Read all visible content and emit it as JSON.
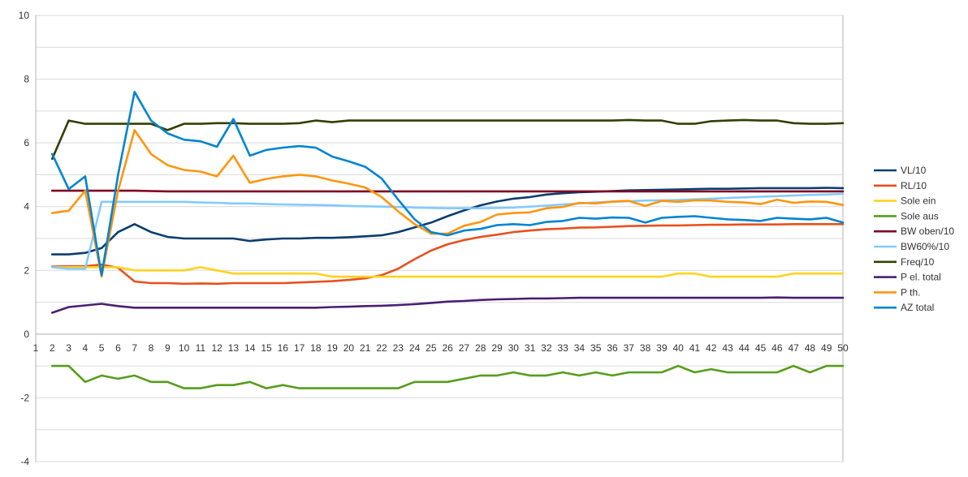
{
  "chart_data": {
    "type": "line",
    "title": "",
    "xlabel": "",
    "ylabel": "",
    "x": [
      1,
      2,
      3,
      4,
      5,
      6,
      7,
      8,
      9,
      10,
      11,
      12,
      13,
      14,
      15,
      16,
      17,
      18,
      19,
      20,
      21,
      22,
      23,
      24,
      25,
      26,
      27,
      28,
      29,
      30,
      31,
      32,
      33,
      34,
      35,
      36,
      37,
      38,
      39,
      40,
      41,
      42,
      43,
      44,
      45,
      46,
      47,
      48,
      49,
      50
    ],
    "xlim": [
      1,
      50
    ],
    "ylim": [
      -4,
      10
    ],
    "yticks": [
      -4,
      -2,
      0,
      2,
      4,
      6,
      8,
      10
    ],
    "ytick_labels": [
      "-4",
      "-2",
      "0",
      "2",
      "4",
      "6",
      "8",
      "10"
    ],
    "xtick_labels": [
      "1",
      "2",
      "3",
      "4",
      "5",
      "6",
      "7",
      "8",
      "9",
      "10",
      "11",
      "12",
      "13",
      "14",
      "15",
      "16",
      "17",
      "18",
      "19",
      "20",
      "21",
      "22",
      "23",
      "24",
      "25",
      "26",
      "27",
      "28",
      "29",
      "30",
      "31",
      "32",
      "33",
      "34",
      "35",
      "36",
      "37",
      "38",
      "39",
      "40",
      "41",
      "42",
      "43",
      "44",
      "45",
      "46",
      "47",
      "48",
      "49",
      "50"
    ],
    "grid": "horizontal",
    "legend_position": "right",
    "series": [
      {
        "name": "VL/10",
        "color": "#0b3d6e",
        "values": [
          null,
          2.5,
          2.5,
          2.55,
          2.7,
          3.2,
          3.45,
          3.2,
          3.05,
          3.0,
          3.0,
          3.0,
          3.0,
          2.92,
          2.97,
          3.0,
          3.0,
          3.02,
          3.02,
          3.04,
          3.07,
          3.1,
          3.2,
          3.35,
          3.5,
          3.7,
          3.88,
          4.04,
          4.16,
          4.25,
          4.3,
          4.38,
          4.42,
          4.45,
          4.47,
          4.49,
          4.51,
          4.52,
          4.53,
          4.54,
          4.55,
          4.56,
          4.56,
          4.57,
          4.58,
          4.58,
          4.58,
          4.58,
          4.59,
          4.58
        ]
      },
      {
        "name": "RL/10",
        "color": "#e8501e",
        "values": [
          null,
          2.12,
          2.13,
          2.13,
          2.18,
          2.08,
          1.65,
          1.6,
          1.6,
          1.58,
          1.59,
          1.58,
          1.6,
          1.6,
          1.6,
          1.6,
          1.62,
          1.64,
          1.66,
          1.7,
          1.75,
          1.85,
          2.05,
          2.35,
          2.62,
          2.82,
          2.95,
          3.05,
          3.12,
          3.2,
          3.25,
          3.29,
          3.31,
          3.34,
          3.35,
          3.37,
          3.39,
          3.4,
          3.41,
          3.41,
          3.42,
          3.43,
          3.43,
          3.44,
          3.44,
          3.44,
          3.45,
          3.45,
          3.45,
          3.45
        ]
      },
      {
        "name": "Sole ein",
        "color": "#ffd320",
        "values": [
          null,
          2.1,
          2.1,
          2.1,
          2.1,
          2.1,
          2.0,
          2.0,
          2.0,
          2.0,
          2.1,
          2.0,
          1.9,
          1.9,
          1.9,
          1.9,
          1.9,
          1.9,
          1.8,
          1.8,
          1.8,
          1.8,
          1.8,
          1.8,
          1.8,
          1.8,
          1.8,
          1.8,
          1.8,
          1.8,
          1.8,
          1.8,
          1.8,
          1.8,
          1.8,
          1.8,
          1.8,
          1.8,
          1.8,
          1.9,
          1.9,
          1.8,
          1.8,
          1.8,
          1.8,
          1.8,
          1.9,
          1.9,
          1.9,
          1.9
        ]
      },
      {
        "name": "Sole aus",
        "color": "#579d1c",
        "values": [
          null,
          -1.0,
          -1.0,
          -1.5,
          -1.3,
          -1.4,
          -1.3,
          -1.5,
          -1.5,
          -1.7,
          -1.7,
          -1.6,
          -1.6,
          -1.5,
          -1.7,
          -1.6,
          -1.7,
          -1.7,
          -1.7,
          -1.7,
          -1.7,
          -1.7,
          -1.7,
          -1.5,
          -1.5,
          -1.5,
          -1.4,
          -1.3,
          -1.3,
          -1.2,
          -1.3,
          -1.3,
          -1.2,
          -1.3,
          -1.2,
          -1.3,
          -1.2,
          -1.2,
          -1.2,
          -1.0,
          -1.2,
          -1.1,
          -1.2,
          -1.2,
          -1.2,
          -1.2,
          -1.0,
          -1.2,
          -1.0,
          -1.0
        ]
      },
      {
        "name": "BW oben/10",
        "color": "#7e0021",
        "values": [
          null,
          4.5,
          4.5,
          4.5,
          4.5,
          4.5,
          4.5,
          4.49,
          4.48,
          4.48,
          4.48,
          4.48,
          4.48,
          4.48,
          4.48,
          4.48,
          4.48,
          4.48,
          4.48,
          4.48,
          4.48,
          4.48,
          4.48,
          4.48,
          4.48,
          4.48,
          4.48,
          4.48,
          4.48,
          4.48,
          4.48,
          4.48,
          4.48,
          4.48,
          4.48,
          4.48,
          4.48,
          4.48,
          4.48,
          4.48,
          4.48,
          4.48,
          4.48,
          4.48,
          4.48,
          4.48,
          4.48,
          4.48,
          4.48,
          4.48
        ]
      },
      {
        "name": "BW60%/10",
        "color": "#83caff",
        "values": [
          null,
          2.1,
          2.05,
          2.05,
          4.15,
          4.15,
          4.15,
          4.15,
          4.15,
          4.15,
          4.13,
          4.12,
          4.1,
          4.1,
          4.08,
          4.07,
          4.06,
          4.05,
          4.04,
          4.02,
          4.01,
          4.0,
          3.99,
          3.97,
          3.96,
          3.95,
          3.95,
          3.95,
          3.96,
          3.97,
          4.0,
          4.03,
          4.07,
          4.1,
          4.13,
          4.15,
          4.17,
          4.19,
          4.2,
          4.21,
          4.23,
          4.25,
          4.27,
          4.29,
          4.31,
          4.33,
          4.35,
          4.37,
          4.38,
          4.4
        ]
      },
      {
        "name": "Freq/10",
        "color": "#314004",
        "values": [
          null,
          5.5,
          6.7,
          6.6,
          6.6,
          6.6,
          6.6,
          6.6,
          6.4,
          6.6,
          6.6,
          6.62,
          6.62,
          6.6,
          6.6,
          6.6,
          6.62,
          6.7,
          6.65,
          6.7,
          6.7,
          6.7,
          6.7,
          6.7,
          6.7,
          6.7,
          6.7,
          6.7,
          6.7,
          6.7,
          6.7,
          6.7,
          6.7,
          6.7,
          6.7,
          6.7,
          6.72,
          6.7,
          6.7,
          6.6,
          6.6,
          6.68,
          6.7,
          6.72,
          6.7,
          6.7,
          6.62,
          6.6,
          6.6,
          6.62
        ]
      },
      {
        "name": "P el. total",
        "color": "#4b1f6f",
        "values": [
          null,
          0.67,
          0.85,
          0.9,
          0.95,
          0.88,
          0.83,
          0.83,
          0.83,
          0.83,
          0.83,
          0.83,
          0.83,
          0.83,
          0.83,
          0.83,
          0.83,
          0.83,
          0.85,
          0.86,
          0.88,
          0.89,
          0.91,
          0.94,
          0.98,
          1.02,
          1.04,
          1.07,
          1.09,
          1.1,
          1.12,
          1.12,
          1.13,
          1.14,
          1.14,
          1.14,
          1.14,
          1.14,
          1.14,
          1.14,
          1.14,
          1.14,
          1.14,
          1.14,
          1.14,
          1.15,
          1.14,
          1.14,
          1.14,
          1.14
        ]
      },
      {
        "name": "P th.",
        "color": "#ff950e",
        "values": [
          null,
          3.8,
          3.87,
          4.5,
          1.8,
          4.5,
          6.4,
          5.65,
          5.3,
          5.15,
          5.1,
          4.95,
          5.6,
          4.75,
          4.87,
          4.95,
          5.0,
          4.95,
          4.82,
          4.72,
          4.6,
          4.3,
          3.85,
          3.45,
          3.15,
          3.15,
          3.4,
          3.52,
          3.75,
          3.8,
          3.82,
          3.95,
          3.99,
          4.12,
          4.1,
          4.16,
          4.18,
          4.02,
          4.18,
          4.15,
          4.2,
          4.19,
          4.15,
          4.13,
          4.08,
          4.22,
          4.12,
          4.16,
          4.15,
          4.05
        ]
      },
      {
        "name": "AZ total",
        "color": "#0084d1",
        "values": [
          null,
          5.65,
          4.55,
          4.95,
          1.85,
          5.0,
          7.6,
          6.7,
          6.3,
          6.1,
          6.05,
          5.88,
          6.75,
          5.6,
          5.78,
          5.85,
          5.9,
          5.85,
          5.57,
          5.42,
          5.25,
          4.88,
          4.22,
          3.6,
          3.2,
          3.1,
          3.25,
          3.3,
          3.42,
          3.45,
          3.42,
          3.52,
          3.55,
          3.65,
          3.62,
          3.66,
          3.65,
          3.5,
          3.65,
          3.68,
          3.7,
          3.65,
          3.6,
          3.58,
          3.55,
          3.65,
          3.62,
          3.6,
          3.65,
          3.5
        ]
      }
    ]
  }
}
